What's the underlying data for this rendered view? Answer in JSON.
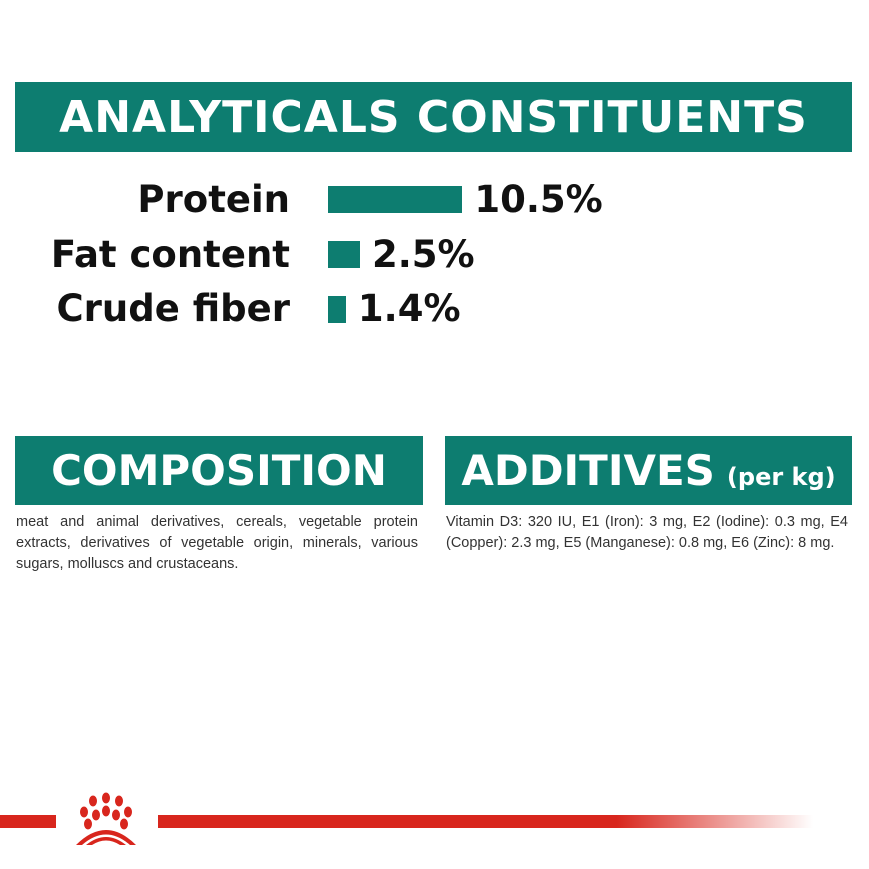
{
  "analyticals": {
    "title": "ANALYTICALS CONSTITUENTS",
    "items": [
      {
        "label": "Protein",
        "value": "10.5%",
        "percent": 10.5
      },
      {
        "label": "Fat content",
        "value": "2.5%",
        "percent": 2.5
      },
      {
        "label": "Crude fiber",
        "value": "1.4%",
        "percent": 1.4
      }
    ]
  },
  "composition": {
    "title": "COMPOSITION",
    "text": "meat and animal derivatives, cereals, vegetable protein extracts, derivatives of vegetable origin, minerals, various sugars, molluscs and crustaceans."
  },
  "additives": {
    "title": "ADDITIVES",
    "subtitle": "(per kg)",
    "text": "Vitamin D3: 320 IU, E1 (Iron): 3 mg, E2 (Iodine): 0.3 mg, E4 (Copper): 2.3 mg, E5 (Manganese): 0.8 mg, E6 (Zinc): 8 mg."
  },
  "colors": {
    "accent": "#0d7d70",
    "brand_red": "#d8261d"
  },
  "logo": {
    "icon": "crown-icon"
  }
}
